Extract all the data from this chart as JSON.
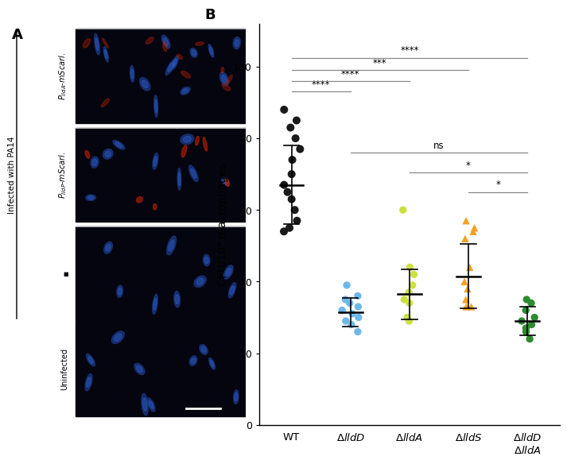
{
  "colors": [
    "#1a1a1a",
    "#6eb8e8",
    "#cce040",
    "#f5a020",
    "#2e8b2e"
  ],
  "markers": [
    "o",
    "o",
    "o",
    "^",
    "o"
  ],
  "data": {
    "WT": [
      88,
      85,
      83,
      80,
      77,
      74,
      70,
      67,
      65,
      63,
      60,
      57,
      55,
      54
    ],
    "lldD": [
      39,
      36,
      35,
      34,
      33,
      32,
      31,
      30,
      29,
      28,
      26
    ],
    "lldA": [
      60,
      44,
      42,
      39,
      37,
      35,
      34,
      30,
      29
    ],
    "lldS": [
      57,
      55,
      54,
      52,
      44,
      40,
      38,
      35,
      33,
      33
    ],
    "lldDA": [
      35,
      34,
      32,
      30,
      29,
      28,
      27,
      26,
      24
    ]
  },
  "means": [
    67.0,
    31.5,
    36.5,
    41.5,
    29.0
  ],
  "sds": [
    11.0,
    4.0,
    7.0,
    9.0,
    4.0
  ],
  "ylabel": "CFU/10⁴ macrophages",
  "ylim": [
    0,
    100
  ],
  "yticks": [
    0,
    20,
    40,
    60,
    80,
    100
  ],
  "panel_label_A": "A",
  "panel_label_B": "B",
  "background_color": "#ffffff",
  "jitter_seed": 7,
  "micro_labels_rotated": [
    "P_lldA-mScarl.",
    "P_lldP-mScarl."
  ],
  "micro_label_infected": "Infected with PA14",
  "micro_label_uninf": "Uninfected",
  "scale_bar_label": "",
  "left_brace_label": "•",
  "image_bg": "#0a0a0a",
  "image1_red_intensity": 0.35,
  "image2_red_intensity": 0.55,
  "image3_red_intensity": 0.0,
  "image4_red_intensity": 0.0
}
